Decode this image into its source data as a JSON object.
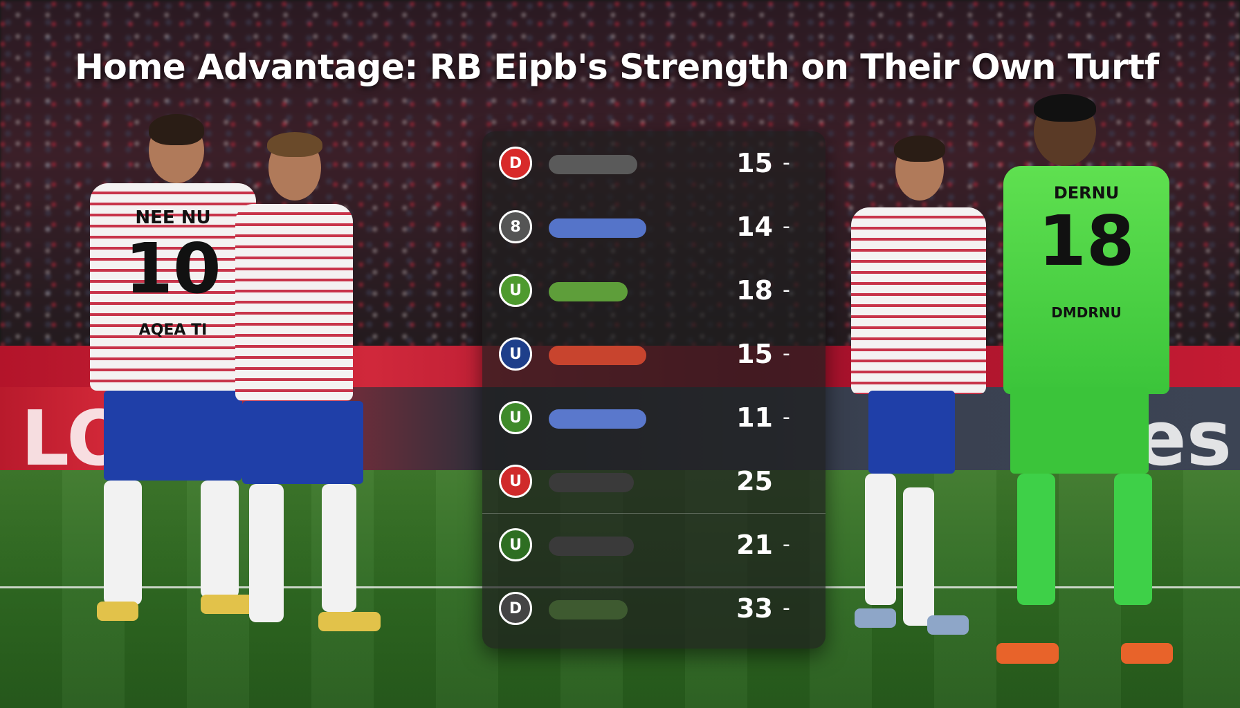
{
  "title": "Home Advantage: RB Eipb's Strength on Their Own Turtf",
  "ad_text_left": "LO",
  "ad_text_right": "es",
  "players": {
    "p1": {
      "name": "NEE NU",
      "number": "10",
      "back_text": "AQEA TI"
    },
    "p4": {
      "name": "DERNU",
      "number": "18",
      "back_text": "DMDRNU"
    }
  },
  "stats": [
    {
      "badge": "D",
      "badge_color": "#d82a2a",
      "bar_color": "#5a5a5a",
      "bar_fill": 0.58,
      "value": "15",
      "suffix": "-"
    },
    {
      "badge": "8",
      "badge_color": "#555555",
      "bar_color": "#5574c9",
      "bar_fill": 0.64,
      "value": "14",
      "suffix": "-"
    },
    {
      "badge": "U",
      "badge_color": "#4e9a2e",
      "bar_color": "#5e9e3a",
      "bar_fill": 0.52,
      "value": "18",
      "suffix": "-"
    },
    {
      "badge": "U",
      "badge_color": "#1e3f8a",
      "bar_color": "#c8442e",
      "bar_fill": 0.64,
      "value": "15",
      "suffix": "-"
    },
    {
      "badge": "U",
      "badge_color": "#3e8a2a",
      "bar_color": "#5a78cc",
      "bar_fill": 0.64,
      "value": "11",
      "suffix": "-"
    },
    {
      "badge": "U",
      "badge_color": "#d02a2a",
      "bar_color": "#3a3a3a",
      "bar_fill": 0.56,
      "value": "25",
      "suffix": ""
    },
    {
      "badge": "U",
      "badge_color": "#2e6e22",
      "bar_color": "#3a3a3a",
      "bar_fill": 0.56,
      "value": "21",
      "suffix": "-"
    },
    {
      "badge": "D",
      "badge_color": "#444444",
      "bar_color": "#3e5a30",
      "bar_fill": 0.52,
      "value": "33",
      "suffix": "-"
    }
  ]
}
